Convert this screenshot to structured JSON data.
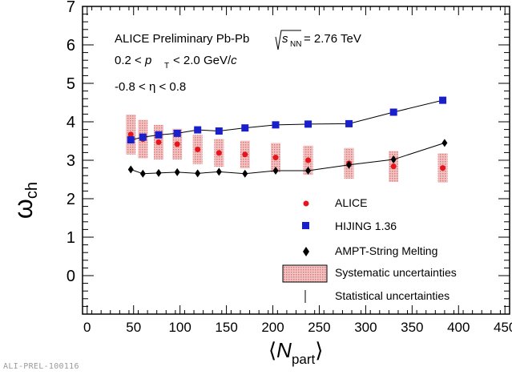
{
  "figure_id": "ALI-PREL-100116",
  "annotations": {
    "line1_prefix": "ALICE Preliminary Pb-Pb",
    "line1_sqrt": "s",
    "line1_sub": "NN",
    "line1_suffix": "= 2.76 TeV",
    "line2_a": "0.2 <",
    "line2_p": "p",
    "line2_sub": "T",
    "line2_b": "< 2.0 GeV/",
    "line2_c": "c",
    "line3": "-0.8 < η < 0.8"
  },
  "axis_labels": {
    "y_main": "ω",
    "y_sub": "ch",
    "x_open": "⟨",
    "x_main": "N",
    "x_sub": "part",
    "x_close": "⟩"
  },
  "legend": [
    {
      "label": "ALICE",
      "marker": "circle",
      "color": "#e8141b"
    },
    {
      "label": "HIJING 1.36",
      "marker": "square",
      "color": "#1a1fcc"
    },
    {
      "label": "AMPT-String Melting",
      "marker": "diamond",
      "color": "#000000"
    },
    {
      "label": "Systematic uncertainties",
      "marker": "band",
      "color": "#e9a3a3"
    },
    {
      "label": "Statistical uncertainties",
      "marker": "bar",
      "color": "#000000"
    }
  ],
  "chart_data": {
    "type": "scatter",
    "xlim": [
      -5,
      455
    ],
    "ylim": [
      -1,
      7
    ],
    "x_ticks": [
      0,
      50,
      100,
      150,
      200,
      250,
      300,
      350,
      400,
      450
    ],
    "y_ticks": [
      0,
      1,
      2,
      3,
      4,
      5,
      6,
      7
    ],
    "grid": false,
    "legend_position": "bottom-right",
    "series": [
      {
        "name": "ALICE",
        "marker": "circle",
        "color": "#e8141b",
        "x": [
          47,
          60,
          77,
          97,
          119,
          142,
          170,
          203,
          238,
          282,
          330,
          383
        ],
        "y": [
          3.67,
          3.55,
          3.47,
          3.42,
          3.28,
          3.19,
          3.15,
          3.07,
          3.0,
          2.92,
          2.84,
          2.8
        ],
        "sys_err": [
          0.52,
          0.5,
          0.45,
          0.4,
          0.38,
          0.36,
          0.36,
          0.38,
          0.38,
          0.4,
          0.4,
          0.38
        ]
      },
      {
        "name": "HIJING 1.36",
        "marker": "square",
        "color": "#1a1fcc",
        "line": true,
        "x": [
          47,
          60,
          77,
          97,
          119,
          142,
          170,
          203,
          238,
          282,
          330,
          383
        ],
        "y": [
          3.53,
          3.6,
          3.66,
          3.7,
          3.79,
          3.76,
          3.84,
          3.92,
          3.94,
          3.95,
          4.25,
          4.56
        ],
        "stat_err": [
          0.03,
          0.03,
          0.03,
          0.03,
          0.03,
          0.03,
          0.03,
          0.03,
          0.03,
          0.03,
          0.04,
          0.06
        ]
      },
      {
        "name": "AMPT-String Melting",
        "marker": "diamond",
        "color": "#000000",
        "line": true,
        "x": [
          47,
          60,
          77,
          97,
          119,
          142,
          170,
          203,
          238,
          282,
          330,
          385
        ],
        "y": [
          2.76,
          2.65,
          2.67,
          2.69,
          2.66,
          2.7,
          2.65,
          2.73,
          2.73,
          2.88,
          3.02,
          3.45
        ],
        "stat_err": [
          0.02,
          0.02,
          0.02,
          0.02,
          0.02,
          0.02,
          0.02,
          0.02,
          0.02,
          0.03,
          0.03,
          0.04
        ]
      }
    ]
  }
}
